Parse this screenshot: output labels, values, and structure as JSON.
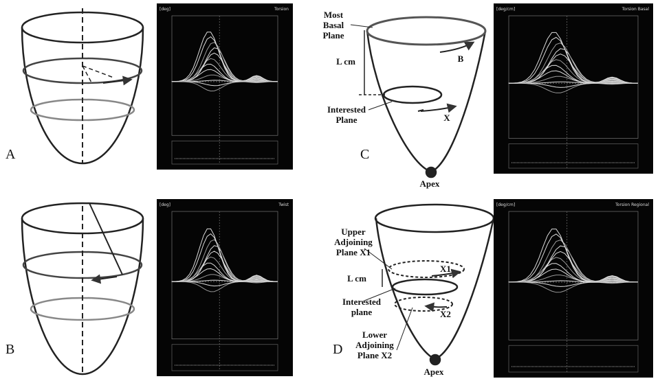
{
  "panels": [
    {
      "label": "A",
      "plot_title": "Torsion",
      "plot_unit": "[deg]"
    },
    {
      "label": "B",
      "plot_title": "Twist",
      "plot_unit": "[deg]"
    },
    {
      "label": "C",
      "plot_title": "Torsion Basal",
      "plot_unit": "[deg/cm]"
    },
    {
      "label": "D",
      "plot_title": "Torsion Regional",
      "plot_unit": "[deg/cm]"
    }
  ],
  "panel_c": {
    "basal": "Most Basal Plane",
    "length": "L cm",
    "b": "B",
    "interested": "Interested Plane",
    "x": "X",
    "apex": "Apex"
  },
  "panel_d": {
    "upper": "Upper Adjoining Plane X1",
    "length": "L cm",
    "x1": "X1",
    "interested": "Interested plane",
    "x2": "X2",
    "lower": "Lower Adjoining Plane X2",
    "apex": "Apex"
  }
}
